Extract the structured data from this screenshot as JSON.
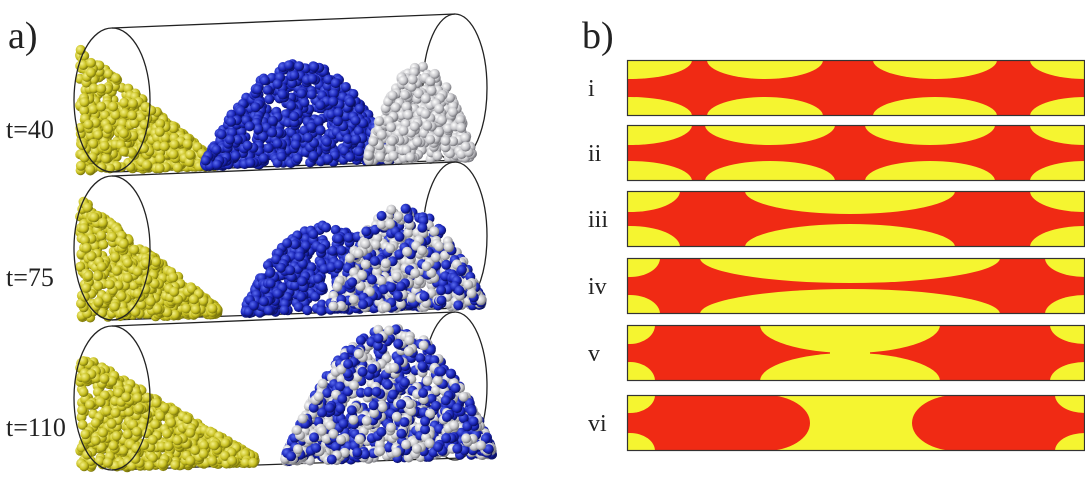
{
  "panel_a": {
    "label": "a)",
    "times": [
      "t=40",
      "t=75",
      "t=110"
    ]
  },
  "panel_b": {
    "label": "b)",
    "rows": [
      "i",
      "ii",
      "iii",
      "iv",
      "v",
      "vi"
    ]
  }
}
